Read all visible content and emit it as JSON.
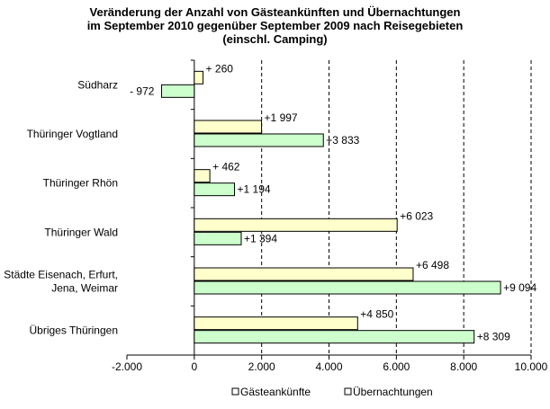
{
  "chart_data": {
    "type": "bar",
    "orientation": "horizontal",
    "title": [
      "Veränderung der Anzahl von Gästeankünften  und Übernachtungen",
      "im September 2010 gegenüber September 2009 nach Reisegebieten",
      "(einschl. Camping)"
    ],
    "categories": [
      [
        "Südharz"
      ],
      [
        "Thüringer Vogtland"
      ],
      [
        "Thüringer Rhön"
      ],
      [
        "Thüringer Wald"
      ],
      [
        "Städte Eisenach, Erfurt,",
        "Jena, Weimar"
      ],
      [
        "Übriges Thüringen"
      ]
    ],
    "series": [
      {
        "name": "Gästeankünfte",
        "color": "#ffffcc",
        "values": [
          260,
          1997,
          462,
          6023,
          6498,
          4850
        ],
        "labels": [
          "+ 260",
          "+1 997",
          "+ 462",
          "+6 023",
          "+6 498",
          "+4 850"
        ]
      },
      {
        "name": "Übernachtungen",
        "color": "#ccffcc",
        "values": [
          -972,
          3833,
          1194,
          1394,
          9094,
          8309
        ],
        "labels": [
          "- 972",
          "+3 833",
          "+1 194",
          "+1 394",
          "+9 094",
          "+8 309"
        ]
      }
    ],
    "xlim": [
      -2000,
      10000
    ],
    "xticks": [
      -2000,
      0,
      2000,
      4000,
      6000,
      8000,
      10000
    ],
    "xtick_labels": [
      "-2.000",
      "0",
      "2.000",
      "4.000",
      "6.000",
      "8.000",
      "10.000"
    ],
    "grid": "vertical dashed",
    "legend": "bottom"
  }
}
